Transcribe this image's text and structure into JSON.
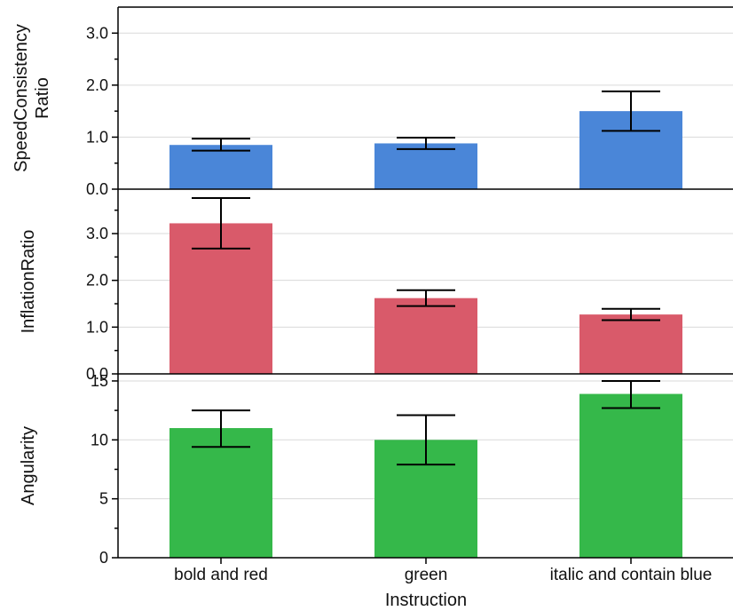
{
  "chart_data": [
    {
      "type": "bar",
      "ylabel_lines": [
        "SpeedConsistency",
        "Ratio"
      ],
      "categories": [
        "bold and red",
        "green",
        "italic and contain blue"
      ],
      "values": [
        0.85,
        0.88,
        1.5
      ],
      "error_low": [
        0.74,
        0.77,
        1.12
      ],
      "error_high": [
        0.97,
        0.99,
        1.88
      ],
      "ylim": [
        0,
        3.5
      ],
      "yticks": [
        0,
        1,
        2,
        3
      ],
      "ytick_labels": [
        "0.0",
        "1.0",
        "2.0",
        "3.0"
      ],
      "color": "#4a86d8"
    },
    {
      "type": "bar",
      "ylabel_lines": [
        "InflationRatio"
      ],
      "categories": [
        "bold and red",
        "green",
        "italic and contain blue"
      ],
      "values": [
        3.22,
        1.62,
        1.27
      ],
      "error_low": [
        2.68,
        1.45,
        1.15
      ],
      "error_high": [
        3.76,
        1.79,
        1.39
      ],
      "ylim": [
        0,
        3.95
      ],
      "yticks": [
        0,
        1,
        2,
        3
      ],
      "ytick_labels": [
        "0.0",
        "1.0",
        "2.0",
        "3.0"
      ],
      "color": "#d95a6a"
    },
    {
      "type": "bar",
      "ylabel_lines": [
        "Angularity"
      ],
      "categories": [
        "bold and red",
        "green",
        "italic and contain blue"
      ],
      "values": [
        11.0,
        10.0,
        13.9
      ],
      "error_low": [
        9.4,
        7.9,
        12.7
      ],
      "error_high": [
        12.5,
        12.1,
        15.0
      ],
      "ylim": [
        0,
        15.6
      ],
      "yticks": [
        0,
        5,
        10,
        15
      ],
      "ytick_labels": [
        "0",
        "5",
        "10",
        "15"
      ],
      "color": "#35b84a"
    }
  ],
  "x_categories": [
    "bold and red",
    "green",
    "italic and contain blue"
  ],
  "x_title": "Instruction"
}
